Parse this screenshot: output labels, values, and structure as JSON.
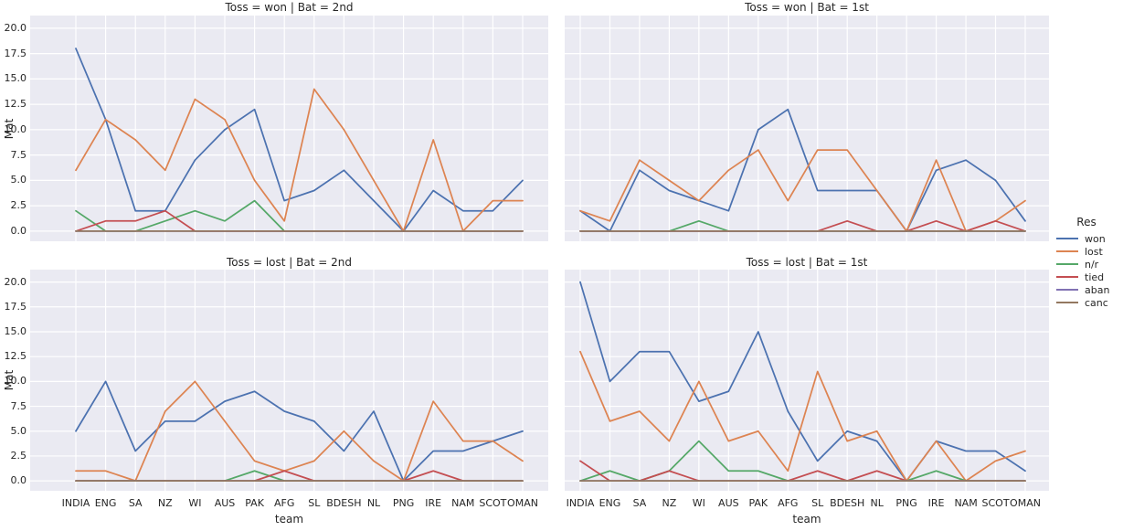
{
  "chart_data": {
    "type": "line",
    "facet_variables": {
      "row": "Toss",
      "col": "Bat"
    },
    "categories": [
      "INDIA",
      "ENG",
      "SA",
      "NZ",
      "WI",
      "AUS",
      "PAK",
      "AFG",
      "SL",
      "BDESH",
      "NL",
      "PNG",
      "IRE",
      "NAM",
      "SCOT",
      "OMAN"
    ],
    "xlabel": "team",
    "ylabel": "Mat",
    "ylim": [
      -1,
      21.25
    ],
    "yticks": [
      0,
      2.5,
      5,
      7.5,
      10,
      12.5,
      15,
      17.5,
      20
    ],
    "ytick_labels": [
      "0.0",
      "2.5",
      "5.0",
      "7.5",
      "10.0",
      "12.5",
      "15.0",
      "17.5",
      "20.0"
    ],
    "grid": true,
    "style": {
      "axes_background": "#eaeaf2",
      "grid_color": "#ffffff",
      "text_color": "#262626"
    },
    "legend": {
      "title": "Res",
      "position": "right",
      "entries": [
        {
          "label": "won",
          "color": "#4c72b0"
        },
        {
          "label": "lost",
          "color": "#dd8452"
        },
        {
          "label": "n/r",
          "color": "#55a868"
        },
        {
          "label": "tied",
          "color": "#c44e52"
        },
        {
          "label": "aban",
          "color": "#8172b3"
        },
        {
          "label": "canc",
          "color": "#937860"
        }
      ]
    },
    "facets": [
      {
        "title": "Toss = won | Bat = 2nd",
        "row": 0,
        "col": 0,
        "series": [
          {
            "name": "won",
            "values": [
              18,
              11,
              2,
              2,
              7,
              10,
              12,
              3,
              4,
              6,
              3,
              0,
              4,
              2,
              2,
              5
            ]
          },
          {
            "name": "lost",
            "values": [
              6,
              11,
              9,
              6,
              13,
              11,
              5,
              1,
              14,
              10,
              5,
              0,
              9,
              0,
              3,
              3
            ]
          },
          {
            "name": "n/r",
            "values": [
              2,
              0,
              0,
              1,
              2,
              1,
              3,
              0,
              0,
              0,
              0,
              0,
              0,
              0,
              0,
              0
            ]
          },
          {
            "name": "tied",
            "values": [
              0,
              1,
              1,
              2,
              0,
              0,
              0,
              0,
              0,
              0,
              0,
              0,
              0,
              0,
              0,
              0
            ]
          },
          {
            "name": "aban",
            "values": [
              0,
              0,
              0,
              0,
              0,
              0,
              0,
              0,
              0,
              0,
              0,
              0,
              0,
              0,
              0,
              0
            ]
          },
          {
            "name": "canc",
            "values": [
              0,
              0,
              0,
              0,
              0,
              0,
              0,
              0,
              0,
              0,
              0,
              0,
              0,
              0,
              0,
              0
            ]
          }
        ]
      },
      {
        "title": "Toss = won | Bat = 1st",
        "row": 0,
        "col": 1,
        "series": [
          {
            "name": "won",
            "values": [
              2,
              0,
              6,
              4,
              3,
              2,
              10,
              12,
              4,
              4,
              4,
              0,
              6,
              7,
              5,
              1
            ]
          },
          {
            "name": "lost",
            "values": [
              2,
              1,
              7,
              5,
              3,
              6,
              8,
              3,
              8,
              8,
              4,
              0,
              7,
              0,
              1,
              3
            ]
          },
          {
            "name": "n/r",
            "values": [
              0,
              0,
              0,
              0,
              1,
              0,
              0,
              0,
              0,
              0,
              0,
              0,
              0,
              0,
              0,
              0
            ]
          },
          {
            "name": "tied",
            "values": [
              0,
              0,
              0,
              0,
              0,
              0,
              0,
              0,
              0,
              1,
              0,
              0,
              1,
              0,
              1,
              0
            ]
          },
          {
            "name": "aban",
            "values": [
              0,
              0,
              0,
              0,
              0,
              0,
              0,
              0,
              0,
              0,
              0,
              0,
              0,
              0,
              0,
              0
            ]
          },
          {
            "name": "canc",
            "values": [
              0,
              0,
              0,
              0,
              0,
              0,
              0,
              0,
              0,
              0,
              0,
              0,
              0,
              0,
              0,
              0
            ]
          }
        ]
      },
      {
        "title": "Toss = lost | Bat = 2nd",
        "row": 1,
        "col": 0,
        "series": [
          {
            "name": "won",
            "values": [
              5,
              10,
              3,
              6,
              6,
              8,
              9,
              7,
              6,
              3,
              7,
              0,
              3,
              3,
              4,
              5
            ]
          },
          {
            "name": "lost",
            "values": [
              1,
              1,
              0,
              7,
              10,
              6,
              2,
              1,
              2,
              5,
              2,
              0,
              8,
              4,
              4,
              2
            ]
          },
          {
            "name": "n/r",
            "values": [
              0,
              0,
              0,
              0,
              0,
              0,
              1,
              0,
              0,
              0,
              0,
              0,
              0,
              0,
              0,
              0
            ]
          },
          {
            "name": "tied",
            "values": [
              0,
              0,
              0,
              0,
              0,
              0,
              0,
              1,
              0,
              0,
              0,
              0,
              1,
              0,
              0,
              0
            ]
          },
          {
            "name": "aban",
            "values": [
              0,
              0,
              0,
              0,
              0,
              0,
              0,
              0,
              0,
              0,
              0,
              0,
              0,
              0,
              0,
              0
            ]
          },
          {
            "name": "canc",
            "values": [
              0,
              0,
              0,
              0,
              0,
              0,
              0,
              0,
              0,
              0,
              0,
              0,
              0,
              0,
              0,
              0
            ]
          }
        ]
      },
      {
        "title": "Toss = lost | Bat = 1st",
        "row": 1,
        "col": 1,
        "series": [
          {
            "name": "won",
            "values": [
              20,
              10,
              13,
              13,
              8,
              9,
              15,
              7,
              2,
              5,
              4,
              0,
              4,
              3,
              3,
              1
            ]
          },
          {
            "name": "lost",
            "values": [
              13,
              6,
              7,
              4,
              10,
              4,
              5,
              1,
              11,
              4,
              5,
              0,
              4,
              0,
              2,
              3
            ]
          },
          {
            "name": "n/r",
            "values": [
              0,
              1,
              0,
              1,
              4,
              1,
              1,
              0,
              0,
              0,
              0,
              0,
              1,
              0,
              0,
              0
            ]
          },
          {
            "name": "tied",
            "values": [
              2,
              0,
              0,
              1,
              0,
              0,
              0,
              0,
              1,
              0,
              1,
              0,
              0,
              0,
              0,
              0
            ]
          },
          {
            "name": "aban",
            "values": [
              0,
              0,
              0,
              0,
              0,
              0,
              0,
              0,
              0,
              0,
              0,
              0,
              0,
              0,
              0,
              0
            ]
          },
          {
            "name": "canc",
            "values": [
              0,
              0,
              0,
              0,
              0,
              0,
              0,
              0,
              0,
              0,
              0,
              0,
              0,
              0,
              0,
              0
            ]
          }
        ]
      }
    ]
  }
}
